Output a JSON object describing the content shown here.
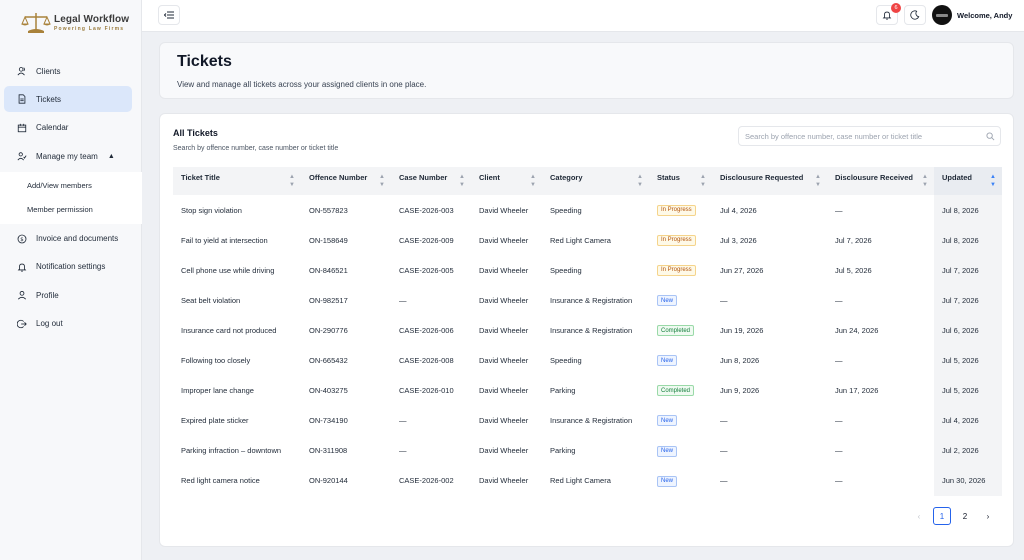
{
  "brand": {
    "title": "Legal Workflow",
    "subtitle": "Powering Law Firms"
  },
  "sidebar": {
    "items": [
      {
        "label": "Clients",
        "icon": "users-icon"
      },
      {
        "label": "Tickets",
        "icon": "document-icon",
        "active": true
      },
      {
        "label": "Calendar",
        "icon": "calendar-icon"
      },
      {
        "label": "Manage my team",
        "icon": "team-icon",
        "expanded": true
      },
      {
        "label": "Invoice and documents",
        "icon": "dollar-icon"
      },
      {
        "label": "Notification settings",
        "icon": "bell-icon"
      },
      {
        "label": "Profile",
        "icon": "user-icon"
      },
      {
        "label": "Log out",
        "icon": "logout-icon"
      }
    ],
    "team_sub": [
      "Add/View members",
      "Member permission"
    ]
  },
  "topbar": {
    "notification_count": "6",
    "welcome": "Welcome, Andy"
  },
  "header": {
    "title": "Tickets",
    "description": "View and manage all tickets across your assigned clients in one place."
  },
  "tickets": {
    "title": "All Tickets",
    "subtitle": "Search by offence number, case number or ticket title",
    "search_placeholder": "Search by offence number, case number or ticket title",
    "columns": [
      "Ticket Title",
      "Offence Number",
      "Case Number",
      "Client",
      "Category",
      "Status",
      "Disclousure Requested",
      "Disclousure Received",
      "Updated"
    ],
    "rows": [
      {
        "title": "Stop sign violation",
        "offence": "ON-557823",
        "case": "CASE-2026-003",
        "client": "David Wheeler",
        "category": "Speeding",
        "status": "In Progress",
        "requested": "Jul 4, 2026",
        "received": "—",
        "updated": "Jul 8, 2026"
      },
      {
        "title": "Fail to yield at intersection",
        "offence": "ON-158649",
        "case": "CASE-2026-009",
        "client": "David Wheeler",
        "category": "Red Light Camera",
        "status": "In Progress",
        "requested": "Jul 3, 2026",
        "received": "Jul 7, 2026",
        "updated": "Jul 8, 2026"
      },
      {
        "title": "Cell phone use while driving",
        "offence": "ON-846521",
        "case": "CASE-2026-005",
        "client": "David Wheeler",
        "category": "Speeding",
        "status": "In Progress",
        "requested": "Jun 27, 2026",
        "received": "Jul 5, 2026",
        "updated": "Jul 7, 2026"
      },
      {
        "title": "Seat belt violation",
        "offence": "ON-982517",
        "case": "—",
        "client": "David Wheeler",
        "category": "Insurance & Registration",
        "status": "New",
        "requested": "—",
        "received": "—",
        "updated": "Jul 7, 2026"
      },
      {
        "title": "Insurance card not produced",
        "offence": "ON-290776",
        "case": "CASE-2026-006",
        "client": "David Wheeler",
        "category": "Insurance & Registration",
        "status": "Completed",
        "requested": "Jun 19, 2026",
        "received": "Jun 24, 2026",
        "updated": "Jul 6, 2026"
      },
      {
        "title": "Following too closely",
        "offence": "ON-665432",
        "case": "CASE-2026-008",
        "client": "David Wheeler",
        "category": "Speeding",
        "status": "New",
        "requested": "Jun 8, 2026",
        "received": "—",
        "updated": "Jul 5, 2026"
      },
      {
        "title": "Improper lane change",
        "offence": "ON-403275",
        "case": "CASE-2026-010",
        "client": "David Wheeler",
        "category": "Parking",
        "status": "Completed",
        "requested": "Jun 9, 2026",
        "received": "Jun 17, 2026",
        "updated": "Jul 5, 2026"
      },
      {
        "title": "Expired plate sticker",
        "offence": "ON-734190",
        "case": "—",
        "client": "David Wheeler",
        "category": "Insurance & Registration",
        "status": "New",
        "requested": "—",
        "received": "—",
        "updated": "Jul 4, 2026"
      },
      {
        "title": "Parking infraction – downtown",
        "offence": "ON-311908",
        "case": "—",
        "client": "David Wheeler",
        "category": "Parking",
        "status": "New",
        "requested": "—",
        "received": "—",
        "updated": "Jul 2, 2026"
      },
      {
        "title": "Red light camera notice",
        "offence": "ON-920144",
        "case": "CASE-2026-002",
        "client": "David Wheeler",
        "category": "Red Light Camera",
        "status": "New",
        "requested": "—",
        "received": "—",
        "updated": "Jun 30, 2026"
      }
    ],
    "pagination": {
      "pages": [
        "1",
        "2"
      ],
      "current": "1",
      "prev": "‹",
      "next": "›"
    }
  }
}
